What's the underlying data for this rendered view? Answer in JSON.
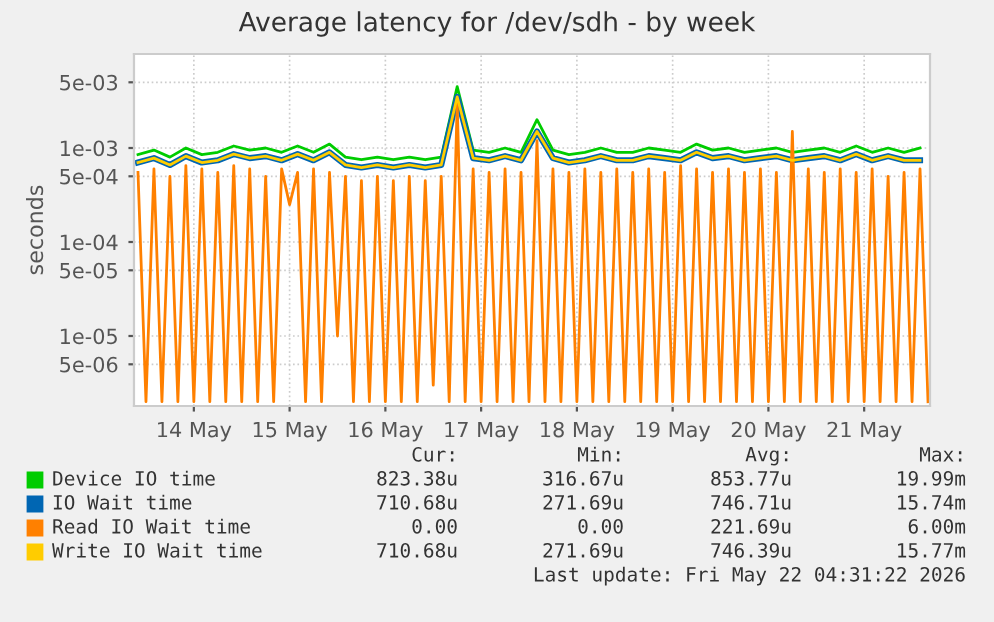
{
  "chart_data": {
    "type": "line",
    "title": "Average latency for /dev/sdh - by week",
    "ylabel": "seconds",
    "log": "y",
    "grid": true,
    "legend": "bottom",
    "marker": "none",
    "line_style": "solid",
    "xlim": [
      "2026-05-13T21:00",
      "2026-05-22T04:30"
    ],
    "xticks": [
      {
        "value": "2026-05-14T12:00",
        "label": "14 May"
      },
      {
        "value": "2026-05-15T12:00",
        "label": "15 May"
      },
      {
        "value": "2026-05-16T12:00",
        "label": "16 May"
      },
      {
        "value": "2026-05-17T12:00",
        "label": "17 May"
      },
      {
        "value": "2026-05-18T12:00",
        "label": "18 May"
      },
      {
        "value": "2026-05-19T12:00",
        "label": "19 May"
      },
      {
        "value": "2026-05-20T12:00",
        "label": "20 May"
      },
      {
        "value": "2026-05-21T12:00",
        "label": "21 May"
      }
    ],
    "ylim": [
      1.8e-06,
      0.01
    ],
    "yticks": [
      {
        "value": 5e-06,
        "label": "5e-06"
      },
      {
        "value": 1e-05,
        "label": "1e-05"
      },
      {
        "value": 5e-05,
        "label": "5e-05"
      },
      {
        "value": 0.0001,
        "label": "1e-04"
      },
      {
        "value": 0.0005,
        "label": "5e-04"
      },
      {
        "value": 0.001,
        "label": "1e-03"
      },
      {
        "value": 0.005,
        "label": "5e-03"
      }
    ],
    "x": [
      "2026-05-13T22:00",
      "2026-05-14T02:00",
      "2026-05-14T06:00",
      "2026-05-14T10:00",
      "2026-05-14T14:00",
      "2026-05-14T18:00",
      "2026-05-14T22:00",
      "2026-05-15T02:00",
      "2026-05-15T06:00",
      "2026-05-15T10:00",
      "2026-05-15T14:00",
      "2026-05-15T18:00",
      "2026-05-15T22:00",
      "2026-05-16T02:00",
      "2026-05-16T06:00",
      "2026-05-16T10:00",
      "2026-05-16T14:00",
      "2026-05-16T18:00",
      "2026-05-16T22:00",
      "2026-05-17T02:00",
      "2026-05-17T06:00",
      "2026-05-17T10:00",
      "2026-05-17T14:00",
      "2026-05-17T18:00",
      "2026-05-17T22:00",
      "2026-05-18T02:00",
      "2026-05-18T06:00",
      "2026-05-18T10:00",
      "2026-05-18T14:00",
      "2026-05-18T18:00",
      "2026-05-18T22:00",
      "2026-05-19T02:00",
      "2026-05-19T06:00",
      "2026-05-19T10:00",
      "2026-05-19T14:00",
      "2026-05-19T18:00",
      "2026-05-19T22:00",
      "2026-05-20T02:00",
      "2026-05-20T06:00",
      "2026-05-20T10:00",
      "2026-05-20T14:00",
      "2026-05-20T18:00",
      "2026-05-20T22:00",
      "2026-05-21T02:00",
      "2026-05-21T06:00",
      "2026-05-21T10:00",
      "2026-05-21T14:00",
      "2026-05-21T18:00",
      "2026-05-21T22:00",
      "2026-05-22T02:00"
    ],
    "series": [
      {
        "name": "Device IO time",
        "color": "#00cc00",
        "values": [
          0.00085,
          0.00095,
          0.0008,
          0.001,
          0.00085,
          0.0009,
          0.00105,
          0.00095,
          0.001,
          0.0009,
          0.00105,
          0.0009,
          0.0011,
          0.0008,
          0.00075,
          0.0008,
          0.00075,
          0.0008,
          0.00075,
          0.0008,
          0.0045,
          0.00095,
          0.0009,
          0.001,
          0.0009,
          0.002,
          0.00095,
          0.00085,
          0.0009,
          0.001,
          0.0009,
          0.0009,
          0.001,
          0.00095,
          0.0009,
          0.0011,
          0.00095,
          0.001,
          0.0009,
          0.00095,
          0.001,
          0.0009,
          0.00095,
          0.001,
          0.0009,
          0.00105,
          0.0009,
          0.001,
          0.0009,
          0.001
        ]
      },
      {
        "name": "IO Wait time",
        "color": "#0066b3",
        "values": [
          0.0007,
          0.00078,
          0.00066,
          0.00082,
          0.0007,
          0.00074,
          0.00086,
          0.00078,
          0.00082,
          0.00074,
          0.00086,
          0.00074,
          0.0009,
          0.00066,
          0.00062,
          0.00066,
          0.00062,
          0.00066,
          0.00062,
          0.00066,
          0.0035,
          0.00078,
          0.00074,
          0.00082,
          0.00074,
          0.0015,
          0.00078,
          0.0007,
          0.00074,
          0.00082,
          0.00074,
          0.00074,
          0.00082,
          0.00078,
          0.00074,
          0.0009,
          0.00078,
          0.00082,
          0.00074,
          0.00078,
          0.00082,
          0.00074,
          0.00078,
          0.00082,
          0.00074,
          0.00086,
          0.00074,
          0.00082,
          0.00074,
          0.00074
        ]
      },
      {
        "name": "Read IO Wait time",
        "color": "#ff8000",
        "x": [
          "2026-05-13T22:00",
          "2026-05-14T00:00",
          "2026-05-14T02:00",
          "2026-05-14T04:00",
          "2026-05-14T06:00",
          "2026-05-14T08:00",
          "2026-05-14T10:00",
          "2026-05-14T12:00",
          "2026-05-14T14:00",
          "2026-05-14T16:00",
          "2026-05-14T18:00",
          "2026-05-14T20:00",
          "2026-05-14T22:00",
          "2026-05-15T00:00",
          "2026-05-15T02:00",
          "2026-05-15T04:00",
          "2026-05-15T06:00",
          "2026-05-15T08:00",
          "2026-05-15T10:00",
          "2026-05-15T12:00",
          "2026-05-15T14:00",
          "2026-05-15T16:00",
          "2026-05-15T18:00",
          "2026-05-15T20:00",
          "2026-05-15T22:00",
          "2026-05-16T00:00",
          "2026-05-16T02:00",
          "2026-05-16T04:00",
          "2026-05-16T06:00",
          "2026-05-16T08:00",
          "2026-05-16T10:00",
          "2026-05-16T12:00",
          "2026-05-16T14:00",
          "2026-05-16T16:00",
          "2026-05-16T18:00",
          "2026-05-16T20:00",
          "2026-05-16T22:00",
          "2026-05-17T00:00",
          "2026-05-17T02:00",
          "2026-05-17T04:00",
          "2026-05-17T06:00",
          "2026-05-17T08:00",
          "2026-05-17T10:00",
          "2026-05-17T12:00",
          "2026-05-17T14:00",
          "2026-05-17T16:00",
          "2026-05-17T18:00",
          "2026-05-17T20:00",
          "2026-05-17T22:00",
          "2026-05-18T00:00",
          "2026-05-18T02:00",
          "2026-05-18T04:00",
          "2026-05-18T06:00",
          "2026-05-18T08:00",
          "2026-05-18T10:00",
          "2026-05-18T12:00",
          "2026-05-18T14:00",
          "2026-05-18T16:00",
          "2026-05-18T18:00",
          "2026-05-18T20:00",
          "2026-05-18T22:00",
          "2026-05-19T00:00",
          "2026-05-19T02:00",
          "2026-05-19T04:00",
          "2026-05-19T06:00",
          "2026-05-19T08:00",
          "2026-05-19T10:00",
          "2026-05-19T12:00",
          "2026-05-19T14:00",
          "2026-05-19T16:00",
          "2026-05-19T18:00",
          "2026-05-19T20:00",
          "2026-05-19T22:00",
          "2026-05-20T00:00",
          "2026-05-20T02:00",
          "2026-05-20T04:00",
          "2026-05-20T06:00",
          "2026-05-20T08:00",
          "2026-05-20T10:00",
          "2026-05-20T12:00",
          "2026-05-20T14:00",
          "2026-05-20T16:00",
          "2026-05-20T18:00",
          "2026-05-20T20:00",
          "2026-05-20T22:00",
          "2026-05-21T00:00",
          "2026-05-21T02:00",
          "2026-05-21T04:00",
          "2026-05-21T06:00",
          "2026-05-21T08:00",
          "2026-05-21T10:00",
          "2026-05-21T12:00",
          "2026-05-21T14:00",
          "2026-05-21T16:00",
          "2026-05-21T18:00",
          "2026-05-21T20:00",
          "2026-05-21T22:00",
          "2026-05-22T00:00",
          "2026-05-22T02:00",
          "2026-05-22T04:00"
        ],
        "values": [
          0.00055,
          2e-06,
          0.0006,
          2e-06,
          0.0005,
          2e-06,
          0.00065,
          2e-06,
          0.0006,
          2e-06,
          0.00055,
          2e-06,
          0.00065,
          2e-06,
          0.0006,
          2e-06,
          0.0005,
          2e-06,
          0.0006,
          0.00025,
          0.00055,
          2e-06,
          0.0006,
          2e-06,
          0.00055,
          1e-05,
          0.0005,
          2e-06,
          0.00045,
          2e-06,
          0.0005,
          2e-06,
          0.00045,
          2e-06,
          0.0005,
          2e-06,
          0.00045,
          3e-06,
          0.0005,
          2e-06,
          0.003,
          2e-06,
          0.0006,
          2e-06,
          0.00055,
          2e-06,
          0.0006,
          2e-06,
          0.00055,
          2e-06,
          0.0012,
          2e-06,
          0.0006,
          2e-06,
          0.00055,
          2e-06,
          0.0006,
          2e-06,
          0.00055,
          2e-06,
          0.0006,
          2e-06,
          0.00055,
          2e-06,
          0.0006,
          2e-06,
          0.00055,
          2e-06,
          0.00065,
          2e-06,
          0.0006,
          2e-06,
          0.00055,
          2e-06,
          0.0006,
          2e-06,
          0.00055,
          2e-06,
          0.0006,
          2e-06,
          0.00055,
          2e-06,
          0.0015,
          2e-06,
          0.0006,
          2e-06,
          0.00055,
          2e-06,
          0.0006,
          2e-06,
          0.00055,
          2e-06,
          0.0006,
          2e-06,
          0.0005,
          2e-06,
          0.00055,
          2e-06,
          0.0006,
          2e-06
        ]
      },
      {
        "name": "Write IO Wait time",
        "color": "#ffcc00",
        "values": [
          0.0007,
          0.00078,
          0.00066,
          0.00082,
          0.0007,
          0.00074,
          0.00086,
          0.00078,
          0.00082,
          0.00074,
          0.00086,
          0.00074,
          0.0009,
          0.00066,
          0.00062,
          0.00066,
          0.00062,
          0.00066,
          0.00062,
          0.00066,
          0.0035,
          0.00078,
          0.00074,
          0.00082,
          0.00074,
          0.0015,
          0.00078,
          0.0007,
          0.00074,
          0.00082,
          0.00074,
          0.00074,
          0.00082,
          0.00078,
          0.00074,
          0.0009,
          0.00078,
          0.00082,
          0.00074,
          0.00078,
          0.00082,
          0.00074,
          0.00078,
          0.00082,
          0.00074,
          0.00086,
          0.00074,
          0.00082,
          0.00074,
          0.00074
        ]
      }
    ],
    "annotations": [
      "Cur:",
      "Min:",
      "Avg:",
      "Max:",
      "823.38u",
      "316.67u",
      "853.77u",
      "19.99m",
      "710.68u",
      "271.69u",
      "746.71u",
      "15.74m",
      "0.00",
      "0.00",
      "221.69u",
      "6.00m",
      "710.68u",
      "271.69u",
      "746.39u",
      "15.77m",
      "Last update: Fri May 22 04:31:22 2026"
    ]
  }
}
